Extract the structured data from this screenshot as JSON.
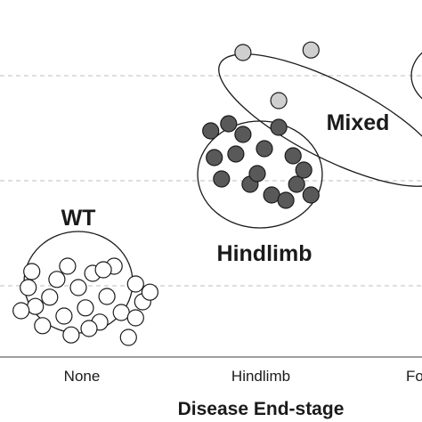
{
  "chart_data": {
    "type": "scatter",
    "x_axis": {
      "label": "Disease End-stage",
      "categories": [
        "None",
        "Hindlimb",
        "Fo"
      ]
    },
    "grid": "horizontal dashed",
    "groups": [
      {
        "name": "WT",
        "category": "None",
        "marker_fill": "#ffffff",
        "points": [
          [
            -0.3,
            1.95
          ],
          [
            -0.26,
            1.42
          ],
          [
            -0.22,
            0.88
          ],
          [
            -0.18,
            1.68
          ],
          [
            -0.14,
            2.18
          ],
          [
            -0.1,
            1.15
          ],
          [
            -0.06,
            0.62
          ],
          [
            -0.02,
            1.95
          ],
          [
            0.02,
            1.38
          ],
          [
            0.06,
            2.35
          ],
          [
            0.1,
            0.98
          ],
          [
            0.14,
            1.7
          ],
          [
            0.18,
            2.55
          ],
          [
            0.22,
            1.25
          ],
          [
            0.26,
            0.55
          ],
          [
            0.3,
            2.05
          ],
          [
            0.34,
            1.55
          ],
          [
            -0.28,
            2.4
          ],
          [
            -0.08,
            2.55
          ],
          [
            0.12,
            2.45
          ],
          [
            0.3,
            1.1
          ],
          [
            0.38,
            1.82
          ],
          [
            -0.34,
            1.3
          ],
          [
            0.04,
            0.8
          ]
        ]
      },
      {
        "name": "Hindlimb",
        "category": "Hindlimb",
        "marker_fill": "#595959",
        "points": [
          [
            -0.28,
            6.35
          ],
          [
            -0.26,
            5.6
          ],
          [
            -0.22,
            5.0
          ],
          [
            -0.18,
            6.55
          ],
          [
            -0.14,
            5.7
          ],
          [
            -0.1,
            6.25
          ],
          [
            -0.06,
            4.85
          ],
          [
            -0.02,
            5.15
          ],
          [
            0.02,
            5.85
          ],
          [
            0.06,
            4.55
          ],
          [
            0.1,
            6.45
          ],
          [
            0.14,
            4.4
          ],
          [
            0.18,
            5.65
          ],
          [
            0.2,
            4.85
          ],
          [
            0.24,
            5.25
          ],
          [
            0.28,
            4.55
          ]
        ]
      },
      {
        "name": "Mixed",
        "category": "between Hindlimb and Fo",
        "marker_fill": "#cfcfcf",
        "points": [
          [
            -0.1,
            8.55
          ],
          [
            0.1,
            7.2
          ],
          [
            0.28,
            8.62
          ],
          [
            1.18,
            5.85
          ]
        ]
      },
      {
        "name": "",
        "category": "Fo",
        "marker_fill": "#cfcfcf",
        "points": []
      }
    ]
  }
}
